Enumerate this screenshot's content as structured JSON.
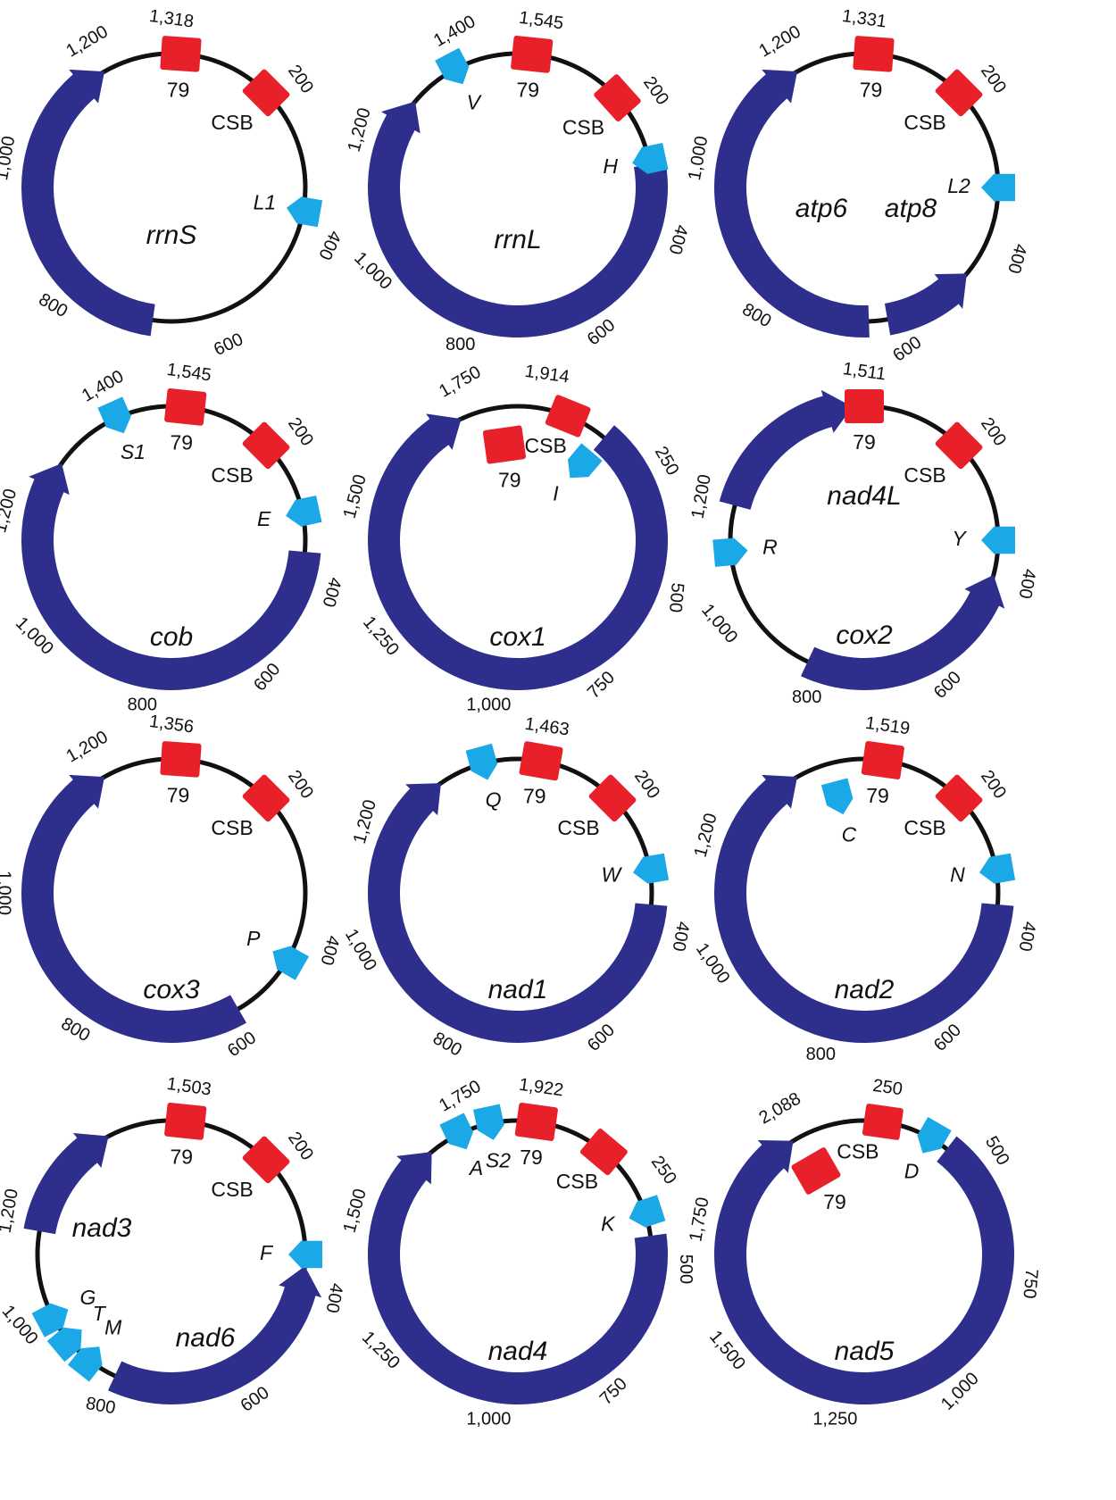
{
  "colors": {
    "backbone": "#111111",
    "gene": "#2e2e8c",
    "trna": "#1aa8e6",
    "red_block": "#e8202a"
  },
  "circles": [
    {
      "ticks": [
        "1,200",
        "1,318",
        "200",
        "400",
        "600",
        "800",
        "1,000"
      ],
      "labels": {
        "site79": "79",
        "csb": "CSB",
        "trnas": [
          "L1"
        ],
        "genes": [
          "rrnS"
        ]
      }
    },
    {
      "ticks": [
        "1,400",
        "1,545",
        "200",
        "400",
        "600",
        "800",
        "1,000",
        "1,200"
      ],
      "labels": {
        "site79": "79",
        "csb": "CSB",
        "trnas": [
          "V",
          "H"
        ],
        "genes": [
          "rrnL"
        ]
      }
    },
    {
      "ticks": [
        "1,200",
        "1,331",
        "200",
        "400",
        "600",
        "800",
        "1,000"
      ],
      "labels": {
        "site79": "79",
        "csb": "CSB",
        "trnas": [
          "L2"
        ],
        "genes": [
          "atp6",
          "atp8"
        ]
      }
    },
    {
      "ticks": [
        "1,400",
        "1,545",
        "200",
        "400",
        "600",
        "800",
        "1,000",
        "1,200"
      ],
      "labels": {
        "site79": "79",
        "csb": "CSB",
        "trnas": [
          "S1",
          "E"
        ],
        "genes": [
          "cob"
        ]
      }
    },
    {
      "ticks": [
        "1,750",
        "1,914",
        "250",
        "500",
        "750",
        "1,000",
        "1,250",
        "1,500"
      ],
      "labels": {
        "site79": "79",
        "csb": "CSB",
        "trnas": [
          "I"
        ],
        "genes": [
          "cox1"
        ]
      }
    },
    {
      "ticks": [
        "1,511",
        "200",
        "400",
        "600",
        "800",
        "1,000",
        "1,200"
      ],
      "labels": {
        "site79": "79",
        "csb": "CSB",
        "trnas": [
          "Y",
          "R"
        ],
        "genes": [
          "nad4L",
          "cox2"
        ]
      }
    },
    {
      "ticks": [
        "1,200",
        "1,356",
        "200",
        "400",
        "600",
        "800",
        "1,000"
      ],
      "labels": {
        "site79": "79",
        "csb": "CSB",
        "trnas": [
          "P"
        ],
        "genes": [
          "cox3"
        ]
      }
    },
    {
      "ticks": [
        "1,463",
        "200",
        "400",
        "600",
        "800",
        "1,000",
        "1,200"
      ],
      "labels": {
        "site79": "79",
        "csb": "CSB",
        "trnas": [
          "Q",
          "W"
        ],
        "genes": [
          "nad1"
        ]
      }
    },
    {
      "ticks": [
        "1,519",
        "200",
        "400",
        "600",
        "800",
        "1,000",
        "1,200"
      ],
      "labels": {
        "site79": "79",
        "csb": "CSB",
        "trnas": [
          "C",
          "N"
        ],
        "genes": [
          "nad2"
        ]
      }
    },
    {
      "ticks": [
        "1,503",
        "200",
        "400",
        "600",
        "800",
        "1,000",
        "1,200"
      ],
      "labels": {
        "site79": "79",
        "csb": "CSB",
        "trnas": [
          "F",
          "G",
          "T",
          "M"
        ],
        "genes": [
          "nad3",
          "nad6"
        ]
      }
    },
    {
      "ticks": [
        "1,750",
        "1,922",
        "250",
        "500",
        "750",
        "1,000",
        "1,250",
        "1,500"
      ],
      "labels": {
        "site79": "79",
        "csb": "CSB",
        "trnas": [
          "A",
          "S2",
          "K"
        ],
        "genes": [
          "nad4"
        ]
      }
    },
    {
      "ticks": [
        "2,088",
        "250",
        "500",
        "750",
        "1,000",
        "1,250",
        "1,500",
        "1,750"
      ],
      "labels": {
        "site79": "79",
        "csb": "CSB",
        "trnas": [
          "D"
        ],
        "genes": [
          "nad5"
        ]
      }
    }
  ]
}
